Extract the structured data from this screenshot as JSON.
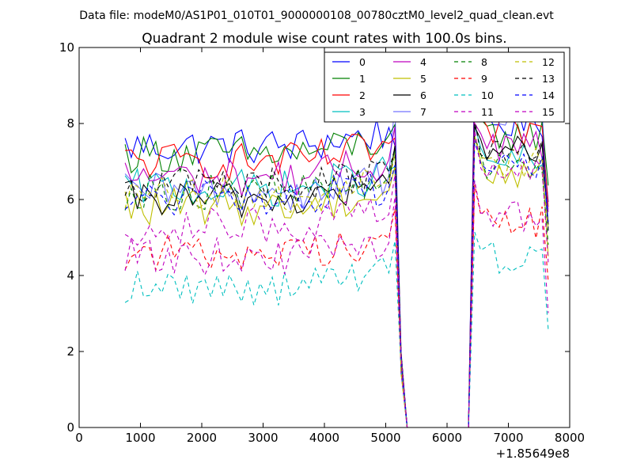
{
  "chart_data": {
    "type": "line",
    "suptitle": "Data file: modeM0/AS1P01_010T01_9000000108_00780cztM0_level2_quad_clean.evt",
    "title": "Quadrant 2 module wise count rates with 100.0s bins.",
    "xlabel": "",
    "ylabel": "",
    "x_offset_label": "+1.85649e8",
    "xlim": [
      0,
      8000
    ],
    "ylim": [
      0,
      10
    ],
    "x_ticks": [
      0,
      1000,
      2000,
      3000,
      4000,
      5000,
      6000,
      7000,
      8000
    ],
    "x_tick_labels": [
      "0",
      "1000",
      "2000",
      "3000",
      "4000",
      "5000",
      "6000",
      "7000",
      "8000"
    ],
    "y_ticks": [
      0,
      2,
      4,
      6,
      8,
      10
    ],
    "y_tick_labels": [
      "0",
      "2",
      "4",
      "6",
      "8",
      "10"
    ],
    "grid": false,
    "legend_position": "top-right",
    "x_start": 750,
    "x_step": 100,
    "num_bins": 70,
    "gap_bins": [
      46,
      47,
      48,
      49,
      50,
      51,
      52,
      53,
      54,
      55,
      56
    ],
    "series": [
      {
        "name": "0",
        "color": "#0000ff",
        "dash": "solid",
        "level": 7.4,
        "post": 8.0,
        "pre_end": 7.4
      },
      {
        "name": "1",
        "color": "#008000",
        "dash": "solid",
        "level": 7.2,
        "post": 7.7,
        "pre_end": 7.6
      },
      {
        "name": "2",
        "color": "#ff0000",
        "dash": "solid",
        "level": 7.0,
        "post": 7.8,
        "pre_end": 7.5
      },
      {
        "name": "3",
        "color": "#00bfbf",
        "dash": "solid",
        "level": 6.3,
        "post": 7.0,
        "pre_end": 7.0
      },
      {
        "name": "4",
        "color": "#bf00bf",
        "dash": "solid",
        "level": 6.6,
        "post": 7.4,
        "pre_end": 7.7
      },
      {
        "name": "5",
        "color": "#bfbf00",
        "dash": "solid",
        "level": 5.8,
        "post": 6.7,
        "pre_end": 6.9
      },
      {
        "name": "6",
        "color": "#000000",
        "dash": "solid",
        "level": 6.0,
        "post": 7.3,
        "pre_end": 7.1
      },
      {
        "name": "7",
        "color": "#0000ff",
        "dash": "solid",
        "level": 6.2,
        "post": 8.4,
        "pre_end": 8.5,
        "opacity": 0.55
      },
      {
        "name": "8",
        "color": "#008000",
        "dash": "dashed",
        "level": 6.2,
        "post": 7.0,
        "pre_end": 6.9
      },
      {
        "name": "9",
        "color": "#ff0000",
        "dash": "dashed",
        "level": 4.6,
        "post": 5.4,
        "pre_end": 5.6
      },
      {
        "name": "10",
        "color": "#00bfbf",
        "dash": "dashed",
        "level": 3.7,
        "post": 4.5,
        "pre_end": 5.0
      },
      {
        "name": "11",
        "color": "#bf00bf",
        "dash": "dashed",
        "level": 4.5,
        "post": 5.5,
        "pre_end": 5.8
      },
      {
        "name": "12",
        "color": "#bfbf00",
        "dash": "dashed",
        "level": 6.1,
        "post": 7.0,
        "pre_end": 7.2
      },
      {
        "name": "13",
        "color": "#000000",
        "dash": "dashed",
        "level": 6.4,
        "post": 7.1,
        "pre_end": 7.0
      },
      {
        "name": "14",
        "color": "#0000ff",
        "dash": "dashed",
        "level": 6.0,
        "post": 6.9,
        "pre_end": 6.8
      },
      {
        "name": "15",
        "color": "#bf00bf",
        "dash": "dashed",
        "level": 5.3,
        "post": 6.8,
        "pre_end": 6.8
      }
    ]
  }
}
